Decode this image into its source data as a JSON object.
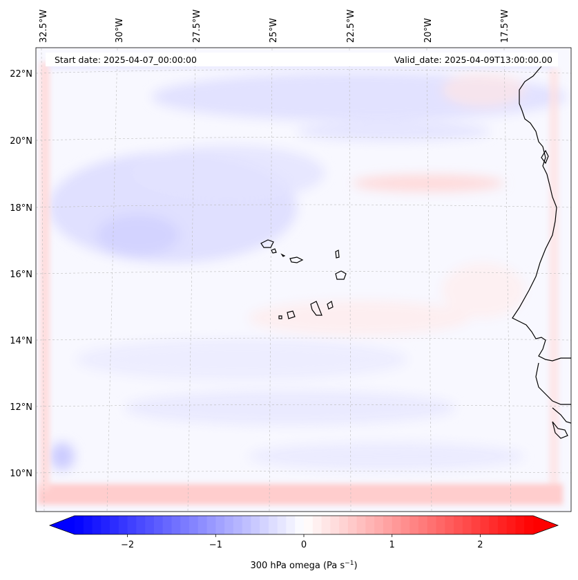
{
  "header": {
    "start_date": "Start date: 2025-04-07_00:00:00",
    "valid_date": "Valid_date: 2025-04-09T13:00:00.00"
  },
  "axes": {
    "lon_labels": [
      "32.5°W",
      "30°W",
      "27.5°W",
      "25°W",
      "22.5°W",
      "20°W",
      "17.5°W"
    ],
    "lat_labels": [
      "22°N",
      "20°N",
      "18°N",
      "16°N",
      "14°N",
      "12°N",
      "10°N"
    ]
  },
  "colorbar": {
    "label_main": "300 hPa omega (Pa s",
    "label_exp": "−1",
    "label_end": ")",
    "ticks": [
      "−2",
      "−1",
      "0",
      "1",
      "2"
    ],
    "range": [
      -2.6,
      2.6
    ],
    "colors": {
      "low": "#0000ff",
      "mid": "#ffffff",
      "high": "#ff0000"
    }
  },
  "map": {
    "region": "Cape Verde / West African coast",
    "ocean_fill": "#f7f7ff",
    "coastline_color": "#000000"
  }
}
